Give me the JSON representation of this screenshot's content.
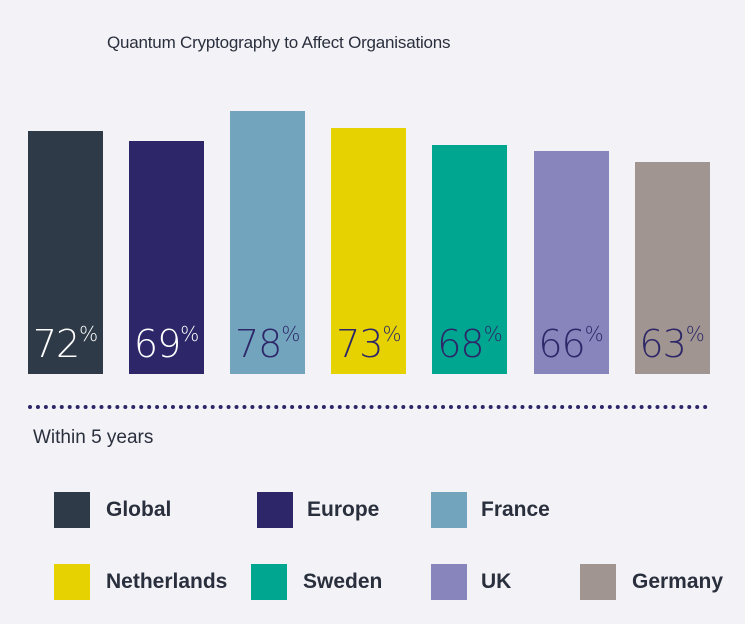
{
  "chart_data": {
    "type": "bar",
    "title": "Quantum Cryptography to Affect Organisations",
    "xlabel": "Within 5 years",
    "ylabel": "",
    "categories": [
      "Global",
      "Europe",
      "France",
      "Netherlands",
      "Sweden",
      "UK",
      "Germany"
    ],
    "values": [
      72,
      69,
      78,
      73,
      68,
      66,
      63
    ],
    "value_suffix": "%",
    "colors": [
      "#2e3a48",
      "#2d2769",
      "#72a5bd",
      "#e5d200",
      "#00a690",
      "#8785bb",
      "#a09590"
    ],
    "label_colors": [
      "#ffffff",
      "#ffffff",
      "#2d2769",
      "#2d2769",
      "#2d2769",
      "#2d2769",
      "#2d2769"
    ],
    "grid": false,
    "legend_position": "bottom"
  }
}
